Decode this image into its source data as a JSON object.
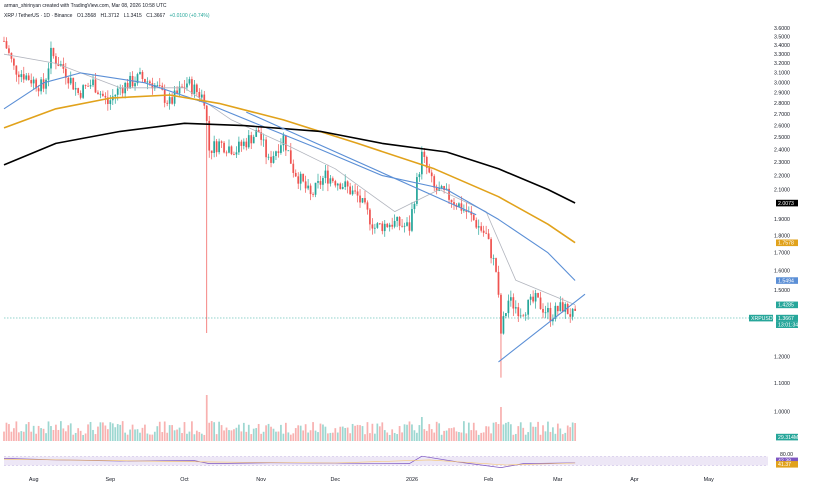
{
  "header": {
    "line1": "arman_shirinyan created with TradingView.com, Mar 08, 2026 10:58 UTC",
    "line2": {
      "symbol": "XRP / TetherUS · 1D · Binance",
      "open": "O1.3568",
      "high": "H1.3712",
      "low": "L1.3415",
      "close": "C1.3667",
      "change": "+0.0100 (+0.74%)"
    }
  },
  "colors": {
    "up": "#26a69a",
    "down": "#ef5350",
    "ma_thin": "#b2b5be",
    "ma_blue": "#5b8fd6",
    "ma_orange": "#e1a21b",
    "ma_black": "#000000",
    "trendline": "#5b8fd6",
    "rsi_line": "#7e57c2",
    "rsi_band": "#ede7f6"
  },
  "chart_data": {
    "type": "candlestick",
    "y_scale": "log",
    "ylim": [
      0.9,
      3.7
    ],
    "yticks": [
      "3.6000",
      "3.5000",
      "3.4000",
      "3.3000",
      "3.2000",
      "3.1000",
      "3.0000",
      "2.9000",
      "2.8000",
      "2.7000",
      "2.6000",
      "2.5000",
      "2.4000",
      "2.3000",
      "2.2000",
      "2.1000",
      "1.9000",
      "1.8000",
      "1.7000",
      "1.6000",
      "1.5000",
      "1.2000",
      "1.1000",
      "1.0000"
    ],
    "x_labels": [
      "Aug",
      "Sep",
      "Oct",
      "Nov",
      "Dec",
      "2026",
      "Feb",
      "Mar",
      "Apr",
      "May"
    ],
    "x_label_dates": [
      "2025-08-01",
      "2025-09-01",
      "2025-10-01",
      "2025-11-01",
      "2025-12-01",
      "2026-01-01",
      "2026-02-01",
      "2026-03-01",
      "2026-04-01",
      "2026-05-01"
    ],
    "date_start": "2025-07-20",
    "date_end": "2026-03-08",
    "price_anchors": [
      [
        "2025-07-20",
        3.45
      ],
      [
        "2025-07-24",
        3.15
      ],
      [
        "2025-07-30",
        3.05
      ],
      [
        "2025-08-05",
        2.95
      ],
      [
        "2025-08-08",
        3.3
      ],
      [
        "2025-08-13",
        3.15
      ],
      [
        "2025-08-19",
        2.9
      ],
      [
        "2025-08-25",
        3.0
      ],
      [
        "2025-08-31",
        2.8
      ],
      [
        "2025-09-05",
        2.95
      ],
      [
        "2025-09-13",
        3.05
      ],
      [
        "2025-09-18",
        3.0
      ],
      [
        "2025-09-25",
        2.8
      ],
      [
        "2025-10-02",
        3.0
      ],
      [
        "2025-10-09",
        2.85
      ],
      [
        "2025-10-11",
        2.4
      ],
      [
        "2025-10-15",
        2.45
      ],
      [
        "2025-10-22",
        2.4
      ],
      [
        "2025-10-31",
        2.55
      ],
      [
        "2025-11-04",
        2.3
      ],
      [
        "2025-11-10",
        2.5
      ],
      [
        "2025-11-14",
        2.25
      ],
      [
        "2025-11-21",
        2.05
      ],
      [
        "2025-11-27",
        2.2
      ],
      [
        "2025-12-03",
        2.15
      ],
      [
        "2025-12-10",
        2.05
      ],
      [
        "2025-12-17",
        1.85
      ],
      [
        "2025-12-24",
        1.88
      ],
      [
        "2025-12-31",
        1.85
      ],
      [
        "2026-01-05",
        2.35
      ],
      [
        "2026-01-10",
        2.1
      ],
      [
        "2026-01-16",
        2.05
      ],
      [
        "2026-01-23",
        1.95
      ],
      [
        "2026-01-31",
        1.8
      ],
      [
        "2026-02-04",
        1.6
      ],
      [
        "2026-02-06",
        1.3
      ],
      [
        "2026-02-09",
        1.45
      ],
      [
        "2026-02-14",
        1.4
      ],
      [
        "2026-02-20",
        1.45
      ],
      [
        "2026-02-26",
        1.38
      ],
      [
        "2026-03-03",
        1.42
      ],
      [
        "2026-03-08",
        1.3667
      ]
    ],
    "ma_thin": [
      [
        "2025-07-20",
        3.3
      ],
      [
        "2025-08-10",
        3.2
      ],
      [
        "2025-09-05",
        2.95
      ],
      [
        "2025-10-01",
        2.95
      ],
      [
        "2025-10-20",
        2.65
      ],
      [
        "2025-11-10",
        2.45
      ],
      [
        "2025-12-01",
        2.25
      ],
      [
        "2025-12-25",
        1.95
      ],
      [
        "2026-01-12",
        2.1
      ],
      [
        "2026-01-31",
        1.95
      ],
      [
        "2026-02-12",
        1.55
      ],
      [
        "2026-03-08",
        1.4285
      ]
    ],
    "ma_blue": [
      [
        "2025-07-20",
        2.75
      ],
      [
        "2025-08-05",
        3.0
      ],
      [
        "2025-08-20",
        3.1
      ],
      [
        "2025-09-15",
        3.0
      ],
      [
        "2025-10-10",
        2.8
      ],
      [
        "2025-11-01",
        2.6
      ],
      [
        "2025-11-25",
        2.4
      ],
      [
        "2025-12-20",
        2.2
      ],
      [
        "2026-01-15",
        2.1
      ],
      [
        "2026-02-05",
        1.9
      ],
      [
        "2026-02-25",
        1.7
      ],
      [
        "2026-03-08",
        1.5494
      ]
    ],
    "ma_orange": [
      [
        "2025-07-20",
        2.58
      ],
      [
        "2025-08-10",
        2.75
      ],
      [
        "2025-09-01",
        2.85
      ],
      [
        "2025-09-25",
        2.88
      ],
      [
        "2025-10-15",
        2.8
      ],
      [
        "2025-11-10",
        2.65
      ],
      [
        "2025-12-10",
        2.45
      ],
      [
        "2026-01-10",
        2.25
      ],
      [
        "2026-02-05",
        2.05
      ],
      [
        "2026-02-25",
        1.87
      ],
      [
        "2026-03-08",
        1.7578
      ]
    ],
    "ma_black": [
      [
        "2025-07-20",
        2.28
      ],
      [
        "2025-08-10",
        2.45
      ],
      [
        "2025-09-05",
        2.55
      ],
      [
        "2025-10-01",
        2.62
      ],
      [
        "2025-10-25",
        2.6
      ],
      [
        "2025-11-25",
        2.55
      ],
      [
        "2025-12-20",
        2.45
      ],
      [
        "2026-01-15",
        2.38
      ],
      [
        "2026-02-05",
        2.25
      ],
      [
        "2026-02-25",
        2.1
      ],
      [
        "2026-03-08",
        2.0073
      ]
    ],
    "trendlines": [
      [
        [
          "2025-10-26",
          2.72
        ],
        [
          "2026-01-27",
          1.93
        ]
      ],
      [
        [
          "2026-02-05",
          1.18
        ],
        [
          "2026-03-12",
          1.48
        ]
      ]
    ],
    "price_labels": [
      {
        "text": "2.0073",
        "value": 2.0073,
        "color": "#000000"
      },
      {
        "text": "1.7578",
        "value": 1.7578,
        "color": "#e1a21b"
      },
      {
        "text": "1.5494",
        "value": 1.5494,
        "color": "#5b8fd6"
      },
      {
        "text": "1.4285",
        "value": 1.4285,
        "color": "#26a69a"
      },
      {
        "text": "1.3667",
        "value": 1.3667,
        "color": "#26a69a"
      }
    ],
    "symbol_tag": "XRPUSDT",
    "countdown": "13:01:34",
    "volume_label": "29.314M",
    "rsi": {
      "levels": [
        "80.00",
        "42.38",
        "41.37"
      ],
      "values": [
        [
          "2025-07-20",
          62
        ],
        [
          "2025-08-10",
          55
        ],
        [
          "2025-09-05",
          50
        ],
        [
          "2025-10-05",
          52
        ],
        [
          "2025-10-11",
          38
        ],
        [
          "2025-11-05",
          42
        ],
        [
          "2025-12-05",
          40
        ],
        [
          "2025-12-31",
          38
        ],
        [
          "2026-01-05",
          72
        ],
        [
          "2026-01-20",
          45
        ],
        [
          "2026-02-06",
          20
        ],
        [
          "2026-02-15",
          38
        ],
        [
          "2026-03-08",
          42
        ]
      ],
      "signal": [
        [
          "2025-07-20",
          58
        ],
        [
          "2025-09-01",
          52
        ],
        [
          "2025-10-15",
          45
        ],
        [
          "2025-12-01",
          41
        ],
        [
          "2026-01-08",
          55
        ],
        [
          "2026-02-08",
          32
        ],
        [
          "2026-03-08",
          41
        ]
      ]
    }
  }
}
